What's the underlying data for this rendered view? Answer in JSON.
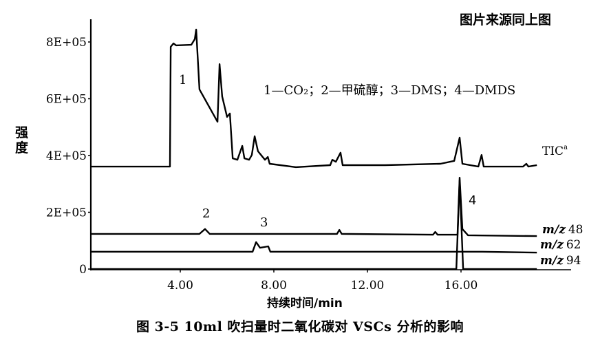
{
  "source_note": "图片来源同上图",
  "caption": "图 3-5   10ml 吹扫量时二氧化碳对 VSCs 分析的影响",
  "chart_data": {
    "type": "line",
    "title": "",
    "xlabel": "持续时间/min",
    "ylabel": "强度",
    "x_ticks": [
      "4.00",
      "8.00",
      "12.00",
      "16.00"
    ],
    "x_tick_values": [
      4,
      8,
      12,
      16
    ],
    "y_ticks": [
      "0",
      "2E+05",
      "4E+05",
      "6E+05",
      "8E+05"
    ],
    "y_tick_values": [
      0,
      200000,
      400000,
      600000,
      800000
    ],
    "xlim": [
      0,
      20.5
    ],
    "ylim": [
      0,
      880000
    ],
    "grid": false,
    "legend_text": "1—CO₂；2—甲硫醇；3—DMS；4—DMDS",
    "peak_labels": [
      "1",
      "2",
      "3",
      "4"
    ],
    "series": [
      {
        "name": "TIC",
        "label_main": "TIC",
        "label_sup": "a",
        "x": [
          0.18,
          3.56,
          3.59,
          3.71,
          3.82,
          4.47,
          4.62,
          4.68,
          4.82,
          5.59,
          5.68,
          5.79,
          6.0,
          6.12,
          6.24,
          6.44,
          6.65,
          6.74,
          6.94,
          7.06,
          7.18,
          7.32,
          7.62,
          7.74,
          7.82,
          8.94,
          10.41,
          10.5,
          10.65,
          10.85,
          10.94,
          12.76,
          15.12,
          15.71,
          15.94,
          16.06,
          16.74,
          16.88,
          16.97,
          18.65,
          18.79,
          18.88,
          19.24
        ],
        "y": [
          361000,
          361000,
          783000,
          795000,
          788000,
          790000,
          810000,
          844000,
          633000,
          519000,
          722000,
          608000,
          536000,
          548000,
          390000,
          385000,
          434000,
          390000,
          385000,
          402000,
          468000,
          415000,
          385000,
          395000,
          371000,
          359000,
          366000,
          385000,
          378000,
          410000,
          366000,
          366000,
          371000,
          381000,
          463000,
          371000,
          361000,
          402000,
          361000,
          361000,
          371000,
          361000,
          366000
        ]
      },
      {
        "name": "m/z 48",
        "label_mz": "m/z",
        "label_num": "48",
        "x": [
          0.18,
          4.82,
          5.06,
          5.26,
          10.7,
          10.8,
          10.9,
          14.8,
          14.9,
          15.0,
          15.85,
          15.94,
          16.06,
          16.3,
          19.24
        ],
        "y": [
          124000,
          124000,
          141000,
          124000,
          124000,
          138000,
          124000,
          121000,
          131000,
          121000,
          121000,
          322000,
          141000,
          119000,
          116000
        ]
      },
      {
        "name": "m/z 62",
        "label_mz": "m/z",
        "label_num": "62",
        "x": [
          0.18,
          7.09,
          7.24,
          7.41,
          7.76,
          7.85,
          16.9,
          19.24
        ],
        "y": [
          61000,
          61000,
          95000,
          75000,
          80000,
          61000,
          61000,
          58000
        ]
      },
      {
        "name": "m/z 94",
        "label_mz": "m/z",
        "label_num": "94",
        "x": [
          0.18,
          15.8,
          15.94,
          16.09,
          19.24
        ],
        "y": [
          0,
          0,
          313000,
          0,
          0
        ]
      }
    ]
  }
}
